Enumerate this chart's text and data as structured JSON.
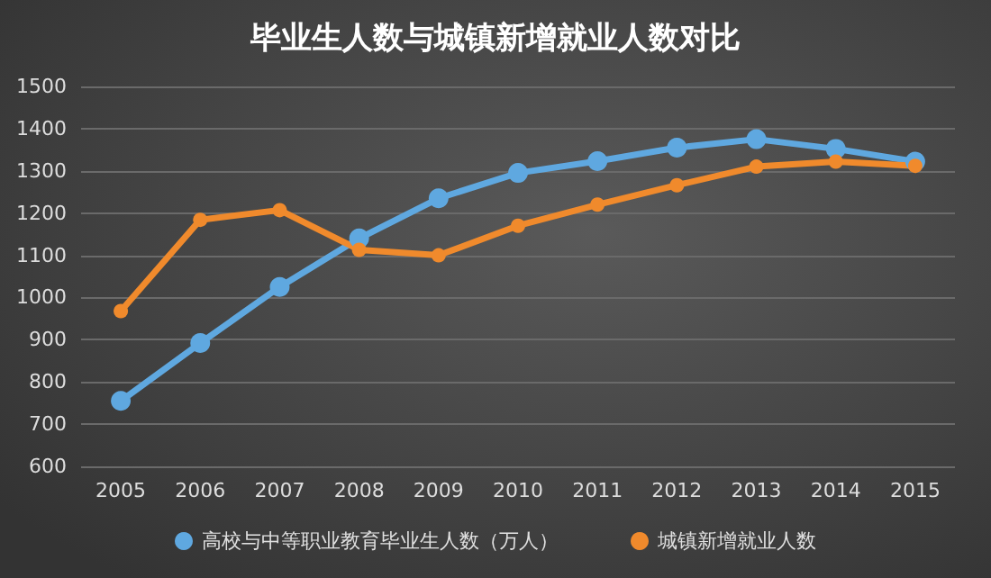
{
  "chart_data": {
    "type": "line",
    "title": "毕业生人数与城镇新增就业人数对比",
    "categories": [
      "2005",
      "2006",
      "2007",
      "2008",
      "2009",
      "2010",
      "2011",
      "2012",
      "2013",
      "2014",
      "2015"
    ],
    "series": [
      {
        "name": "高校与中等职业教育毕业生人数（万人）",
        "color": "#5fa8e0",
        "values": [
          755,
          892,
          1025,
          1140,
          1235,
          1295,
          1323,
          1355,
          1375,
          1352,
          1322
        ]
      },
      {
        "name": "城镇新增就业人数",
        "color": "#f08a2c",
        "values": [
          968,
          1184,
          1207,
          1113,
          1100,
          1170,
          1220,
          1266,
          1310,
          1322,
          1312
        ]
      }
    ],
    "ylim": [
      600,
      1500
    ],
    "yticks": [
      600,
      700,
      800,
      900,
      1000,
      1100,
      1200,
      1300,
      1400,
      1500
    ],
    "grid": "y",
    "legend": "bottom",
    "marker": "circle",
    "line_style": "solid"
  }
}
